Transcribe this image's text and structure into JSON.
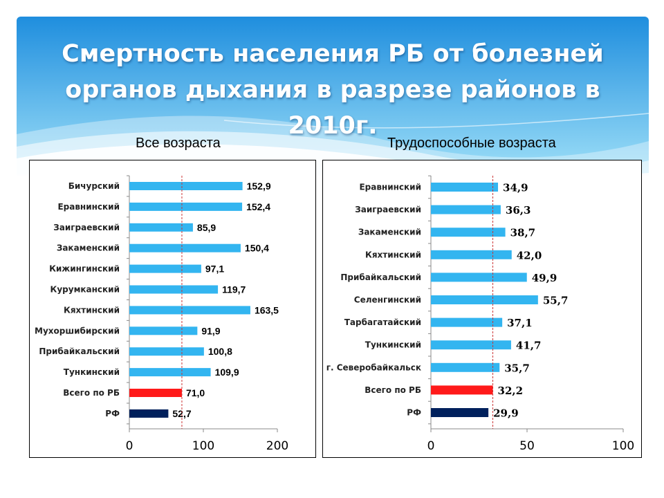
{
  "title": "Смертность населения РБ от болезней органов дыхания в разрезе районов в 2010г.",
  "colors": {
    "district_bar": "#33b5f0",
    "rb_bar": "#ff1a1a",
    "rf_bar": "#00205c",
    "header_top": "#1f8ede",
    "header_bottom": "#9fe0f8"
  },
  "chart_data": [
    {
      "type": "bar",
      "orientation": "horizontal",
      "title": "Все возраста",
      "categories": [
        "Бичурский",
        "Еравнинский",
        "Заиграевский",
        "Закаменский",
        "Кижингинский",
        "Курумканский",
        "Кяхтинский",
        "Мухоршибирский",
        "Прибайкальский",
        "Тункинский",
        "Всего по РБ",
        "РФ"
      ],
      "values": [
        152.9,
        152.4,
        85.9,
        150.4,
        97.1,
        119.7,
        163.5,
        91.9,
        100.8,
        109.9,
        71.0,
        52.7
      ],
      "value_labels": [
        "152,9",
        "152,4",
        "85,9",
        "150,4",
        "97,1",
        "119,7",
        "163,5",
        "91,9",
        "100,8",
        "109,9",
        "71,0",
        "52,7"
      ],
      "xlim": [
        0,
        200
      ],
      "x_ticks": [
        "0",
        "100",
        "200"
      ],
      "reference_line": 71.0
    },
    {
      "type": "bar",
      "orientation": "horizontal",
      "title": "Трудоспособные возраста",
      "categories": [
        "Еравнинский",
        "Заиграевский",
        "Закаменский",
        "Кяхтинский",
        "Прибайкальский",
        "Селенгинский",
        "Тарбагатайский",
        "Тункинский",
        "г. Северобайкальск",
        "Всего по РБ",
        "РФ"
      ],
      "values": [
        34.9,
        36.3,
        38.7,
        42.0,
        49.9,
        55.7,
        37.1,
        41.7,
        35.7,
        32.2,
        29.9
      ],
      "value_labels": [
        "34,9",
        "36,3",
        "38,7",
        "42,0",
        "49,9",
        "55,7",
        "37,1",
        "41,7",
        "35,7",
        "32,2",
        "29,9"
      ],
      "xlim": [
        0,
        100
      ],
      "x_ticks": [
        "0",
        "50",
        "100"
      ],
      "reference_line": 32.2
    }
  ]
}
